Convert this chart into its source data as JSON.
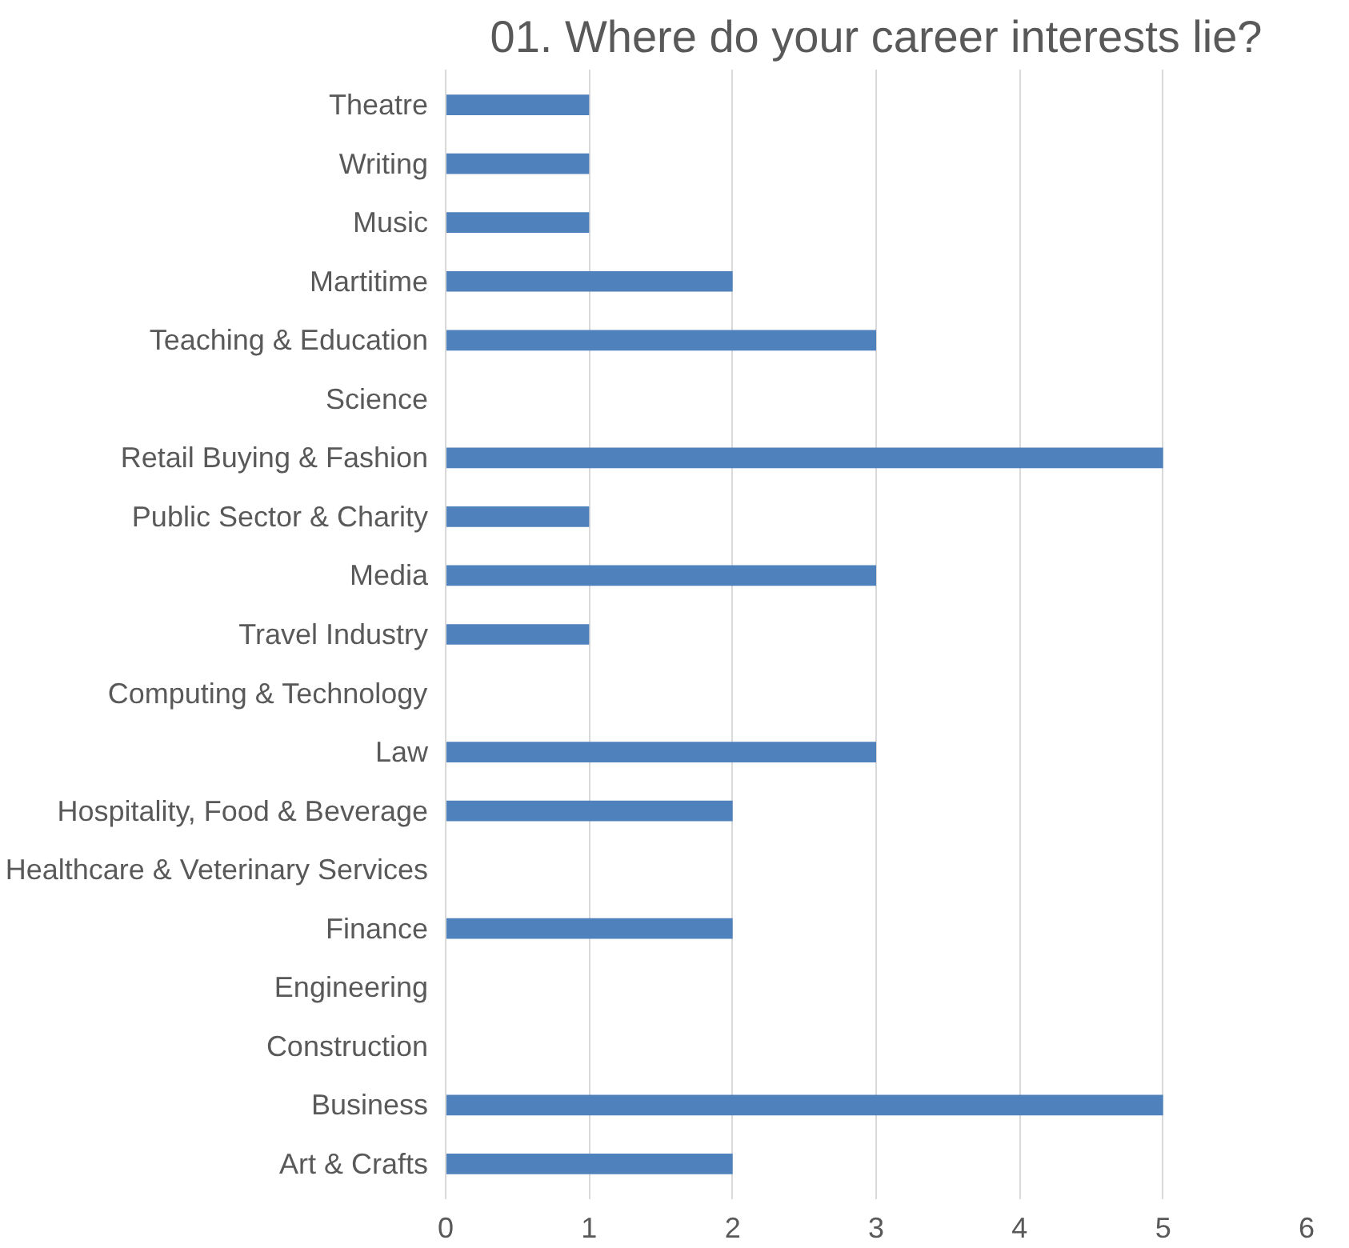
{
  "chart_data": {
    "type": "bar",
    "orientation": "horizontal",
    "title": "01. Where do your career interests lie?",
    "categories": [
      "Theatre",
      "Writing",
      "Music",
      "Martitime",
      "Teaching & Education",
      "Science",
      "Retail Buying & Fashion",
      "Public Sector & Charity",
      "Media",
      "Travel Industry",
      "Computing & Technology",
      "Law",
      "Hospitality, Food & Beverage",
      "Healthcare & Veterinary Services",
      "Finance",
      "Engineering",
      "Construction",
      "Business",
      "Art & Crafts"
    ],
    "values": [
      1,
      1,
      1,
      2,
      3,
      0,
      5,
      1,
      3,
      1,
      0,
      3,
      2,
      0,
      2,
      0,
      0,
      5,
      2
    ],
    "color": "#4f81bd",
    "xlim": [
      0,
      6
    ],
    "xticks": [
      0,
      1,
      2,
      3,
      4,
      5,
      6
    ],
    "grid": "x"
  }
}
